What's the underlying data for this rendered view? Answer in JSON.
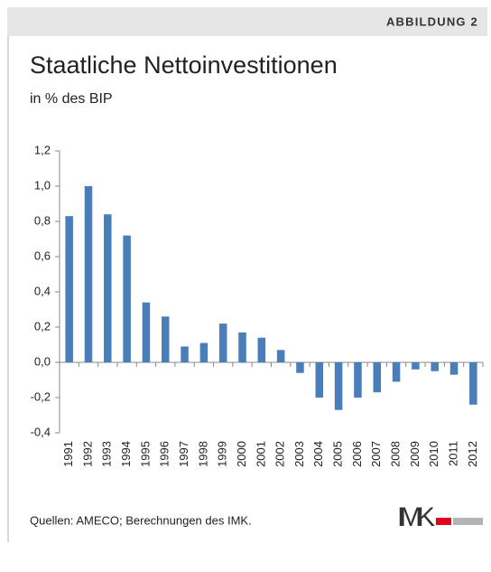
{
  "header": {
    "label": "ABBILDUNG 2"
  },
  "chart_data": {
    "type": "bar",
    "title": "Staatliche Nettoinvestitionen",
    "subtitle": "in % des BIP",
    "categories": [
      "1991",
      "1992",
      "1993",
      "1994",
      "1995",
      "1996",
      "1997",
      "1998",
      "1999",
      "2000",
      "2001",
      "2002",
      "2003",
      "2004",
      "2005",
      "2006",
      "2007",
      "2008",
      "2009",
      "2010",
      "2011",
      "2012"
    ],
    "values": [
      0.83,
      1.0,
      0.84,
      0.72,
      0.34,
      0.26,
      0.09,
      0.11,
      0.22,
      0.17,
      0.14,
      0.07,
      -0.06,
      -0.2,
      -0.27,
      -0.2,
      -0.17,
      -0.11,
      -0.04,
      -0.05,
      -0.07,
      -0.24
    ],
    "color": "#4a7ebb",
    "ylim": [
      -0.4,
      1.2
    ],
    "yticks": [
      {
        "value": -0.4,
        "label": "-0,4"
      },
      {
        "value": -0.2,
        "label": "-0,2"
      },
      {
        "value": 0,
        "label": "0,0"
      },
      {
        "value": 0.2,
        "label": "0,2"
      },
      {
        "value": 0.4,
        "label": "0,4"
      },
      {
        "value": 0.6,
        "label": "0,6"
      },
      {
        "value": 0.8,
        "label": "0,8"
      },
      {
        "value": 1.0,
        "label": "1,0"
      },
      {
        "value": 1.2,
        "label": "1,2"
      }
    ]
  },
  "source": "Quellen: AMECO; Berechnungen des IMK.",
  "logo": "IMK"
}
